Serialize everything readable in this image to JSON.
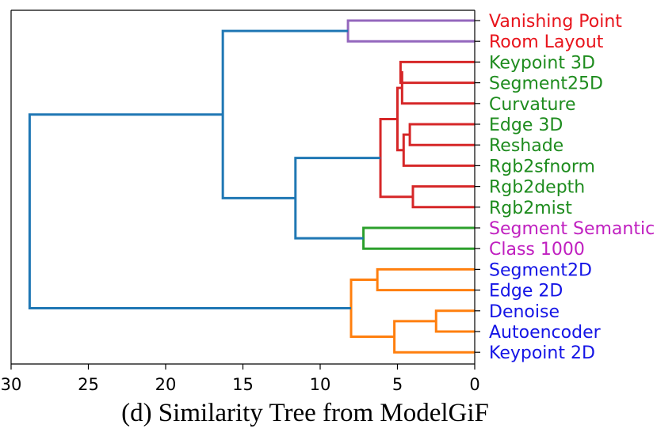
{
  "chart_data": {
    "type": "dendrogram",
    "caption": "(d) Similarity Tree from ModelGiF",
    "orientation": "left",
    "xlim": [
      30,
      0
    ],
    "xticks": [
      30,
      25,
      20,
      15,
      10,
      5,
      0
    ],
    "grid": false,
    "leaves": [
      {
        "label": "Vanishing Point",
        "color": "#e8141c"
      },
      {
        "label": "Room Layout",
        "color": "#e8141c"
      },
      {
        "label": "Keypoint 3D",
        "color": "#1e8c1e"
      },
      {
        "label": "Segment25D",
        "color": "#1e8c1e"
      },
      {
        "label": "Curvature",
        "color": "#1e8c1e"
      },
      {
        "label": "Edge 3D",
        "color": "#1e8c1e"
      },
      {
        "label": "Reshade",
        "color": "#1e8c1e"
      },
      {
        "label": "Rgb2sfnorm",
        "color": "#1e8c1e"
      },
      {
        "label": "Rgb2depth",
        "color": "#1e8c1e"
      },
      {
        "label": "Rgb2mist",
        "color": "#1e8c1e"
      },
      {
        "label": "Segment Semantic",
        "color": "#c020c0"
      },
      {
        "label": "Class 1000",
        "color": "#c020c0"
      },
      {
        "label": "Segment2D",
        "color": "#1414e6"
      },
      {
        "label": "Edge 2D",
        "color": "#1414e6"
      },
      {
        "label": "Denoise",
        "color": "#1414e6"
      },
      {
        "label": "Autoencoder",
        "color": "#1414e6"
      },
      {
        "label": "Keypoint 2D",
        "color": "#1414e6"
      }
    ],
    "merges": [
      {
        "id": "m_vp_rl",
        "a": "L0",
        "b": "L1",
        "height": 8.2,
        "color": "#9467bd"
      },
      {
        "id": "m_kp3_seg25",
        "a": "L2",
        "b": "L3",
        "height": 4.8,
        "color": "#d62728"
      },
      {
        "id": "m_kseg_curv",
        "a": "m_kp3_seg25",
        "b": "L4",
        "height": 4.7,
        "color": "#d62728"
      },
      {
        "id": "m_e3_resh",
        "a": "L5",
        "b": "L6",
        "height": 4.2,
        "color": "#d62728"
      },
      {
        "id": "m_er_sfn",
        "a": "m_e3_resh",
        "b": "L7",
        "height": 4.6,
        "color": "#d62728"
      },
      {
        "id": "m_kc_ers",
        "a": "m_kseg_curv",
        "b": "m_er_sfn",
        "height": 5.0,
        "color": "#d62728"
      },
      {
        "id": "m_depth_mist",
        "a": "L8",
        "b": "L9",
        "height": 4.0,
        "color": "#d62728"
      },
      {
        "id": "m_red",
        "a": "m_kc_ers",
        "b": "m_depth_mist",
        "height": 6.1,
        "color": "#d62728"
      },
      {
        "id": "m_green",
        "a": "L10",
        "b": "L11",
        "height": 7.2,
        "color": "#2ca02c"
      },
      {
        "id": "m_red_green",
        "a": "m_red",
        "b": "m_green",
        "height": 11.6,
        "color": "#1f77b4"
      },
      {
        "id": "m_top",
        "a": "m_vp_rl",
        "b": "m_red_green",
        "height": 16.3,
        "color": "#1f77b4"
      },
      {
        "id": "m_seg2d_edge2d",
        "a": "L12",
        "b": "L13",
        "height": 6.3,
        "color": "#ff7f0e"
      },
      {
        "id": "m_den_auto",
        "a": "L14",
        "b": "L15",
        "height": 2.5,
        "color": "#ff7f0e"
      },
      {
        "id": "m_da_kp2",
        "a": "m_den_auto",
        "b": "L16",
        "height": 5.2,
        "color": "#ff7f0e"
      },
      {
        "id": "m_orange",
        "a": "m_seg2d_edge2d",
        "b": "m_da_kp2",
        "height": 8.0,
        "color": "#ff7f0e"
      },
      {
        "id": "m_root",
        "a": "m_top",
        "b": "m_orange",
        "height": 28.8,
        "color": "#1f77b4"
      }
    ]
  }
}
